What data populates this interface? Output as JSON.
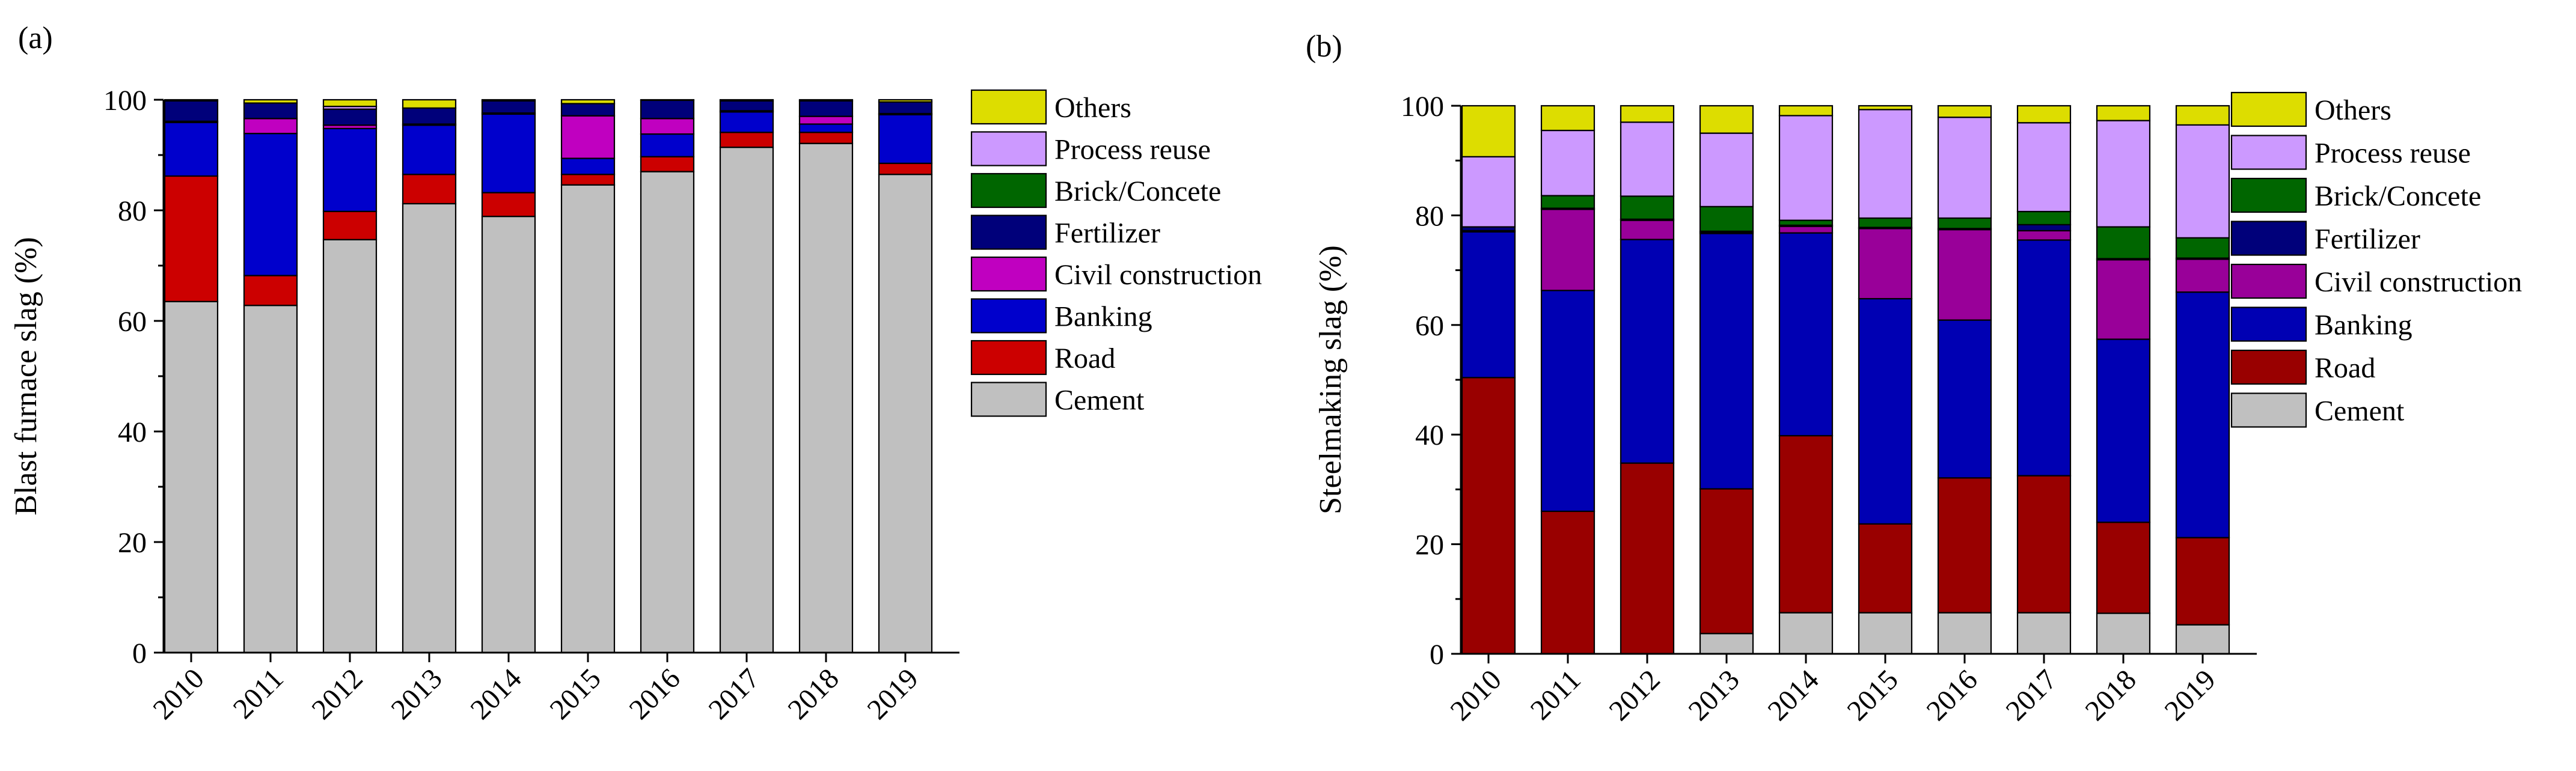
{
  "chart_data": [
    {
      "type": "bar",
      "stacked": true,
      "panel_label": "(a)",
      "title": "",
      "xlabel": "",
      "ylabel": "Blast furnace slag (%)",
      "ylim": [
        0,
        100
      ],
      "yticks": [
        0,
        20,
        40,
        60,
        80,
        100
      ],
      "grid": false,
      "legend_position": "right",
      "categories": [
        "2010",
        "2011",
        "2012",
        "2013",
        "2014",
        "2015",
        "2016",
        "2017",
        "2018",
        "2019"
      ],
      "series": [
        {
          "name": "Cement",
          "color": "#c0c0c0",
          "values": [
            63.5,
            62.8,
            74.7,
            81.2,
            78.9,
            84.6,
            87.0,
            91.4,
            92.1,
            86.5
          ]
        },
        {
          "name": "Road",
          "color": "#cc0000",
          "values": [
            22.7,
            5.4,
            5.1,
            5.3,
            4.3,
            1.9,
            2.7,
            2.7,
            2.0,
            2.0
          ]
        },
        {
          "name": "Banking",
          "color": "#0000cc",
          "values": [
            9.7,
            25.7,
            15.0,
            8.9,
            14.2,
            2.9,
            4.1,
            3.7,
            1.5,
            8.8
          ]
        },
        {
          "name": "Civil construction",
          "color": "#c000c0",
          "values": [
            0.2,
            2.7,
            0.6,
            0.2,
            0.2,
            7.7,
            2.8,
            0.2,
            1.4,
            0.2
          ]
        },
        {
          "name": "Fertilizer",
          "color": "#00007a",
          "values": [
            3.7,
            2.8,
            2.9,
            2.9,
            2.2,
            2.2,
            3.3,
            1.8,
            2.8,
            2.1
          ]
        },
        {
          "name": "Brick/Concete",
          "color": "#006600",
          "values": [
            0,
            0,
            0,
            0,
            0,
            0,
            0,
            0,
            0,
            0
          ]
        },
        {
          "name": "Process reuse",
          "color": "#cc99ff",
          "values": [
            0,
            0,
            0.5,
            0,
            0,
            0,
            0,
            0,
            0,
            0
          ]
        },
        {
          "name": "Others",
          "color": "#dddd00",
          "values": [
            0.2,
            0.6,
            1.2,
            1.5,
            0.2,
            0.7,
            0.1,
            0.2,
            0.2,
            0.4
          ]
        }
      ]
    },
    {
      "type": "bar",
      "stacked": true,
      "panel_label": "(b)",
      "title": "",
      "xlabel": "",
      "ylabel": "Steelmaking slag (%)",
      "ylim": [
        0,
        100
      ],
      "yticks": [
        0,
        20,
        40,
        60,
        80,
        100
      ],
      "grid": false,
      "legend_position": "right",
      "categories": [
        "2010",
        "2011",
        "2012",
        "2013",
        "2014",
        "2015",
        "2016",
        "2017",
        "2018",
        "2019"
      ],
      "series": [
        {
          "name": "Cement",
          "color": "#c0c0c0",
          "values": [
            0,
            0,
            0,
            3.7,
            7.5,
            7.5,
            7.5,
            7.5,
            7.4,
            5.3
          ]
        },
        {
          "name": "Road",
          "color": "#990000",
          "values": [
            50.4,
            26.0,
            34.8,
            26.4,
            32.3,
            16.2,
            24.6,
            25.0,
            16.6,
            15.9
          ]
        },
        {
          "name": "Banking",
          "color": "#0000b3",
          "values": [
            26.6,
            40.3,
            40.8,
            46.6,
            37.0,
            41.1,
            28.8,
            43.0,
            33.4,
            44.8
          ]
        },
        {
          "name": "Civil construction",
          "color": "#990099",
          "values": [
            0.2,
            14.8,
            3.5,
            0.2,
            1.2,
            12.8,
            16.5,
            1.7,
            14.5,
            6.0
          ]
        },
        {
          "name": "Fertilizer",
          "color": "#00007a",
          "values": [
            0.7,
            0.2,
            0.2,
            0.2,
            0.2,
            0.2,
            0.2,
            1.1,
            0.2,
            0.2
          ]
        },
        {
          "name": "Brick/Concete",
          "color": "#006600",
          "values": [
            0,
            2.3,
            4.2,
            4.5,
            0.9,
            1.7,
            1.9,
            2.4,
            5.8,
            3.7
          ]
        },
        {
          "name": "Process reuse",
          "color": "#cc99ff",
          "values": [
            12.8,
            11.9,
            13.5,
            13.4,
            19.1,
            19.8,
            18.4,
            16.2,
            19.4,
            20.6
          ]
        },
        {
          "name": "Others",
          "color": "#dddd00",
          "values": [
            9.3,
            4.5,
            3.0,
            5.0,
            1.8,
            0.7,
            2.1,
            3.1,
            2.7,
            3.5
          ]
        }
      ]
    }
  ]
}
